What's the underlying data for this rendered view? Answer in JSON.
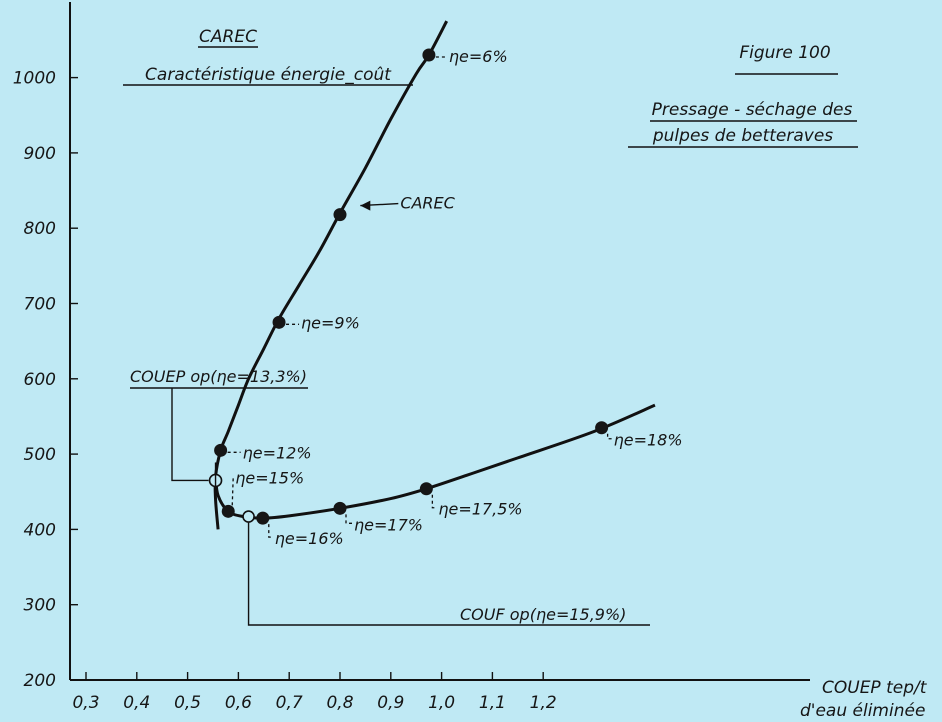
{
  "chart_data": {
    "type": "line",
    "title": "CAREC",
    "subtitle": "Caractéristique énergie_coût",
    "figure_label": "Figure 100",
    "description": [
      "Pressage - séchage des",
      "pulpes de betteraves"
    ],
    "xlabel": [
      "COUEP tep/t",
      "d'eau éliminée"
    ],
    "x_ticks": [
      "0,3",
      "0,4",
      "0,5",
      "0,6",
      "0,7",
      "0,8",
      "0,9",
      "1,0",
      "1,1",
      "1,2"
    ],
    "y_ticks": [
      "200",
      "300",
      "400",
      "500",
      "600",
      "700",
      "800",
      "900",
      "1000"
    ],
    "xlim": [
      0.3,
      1.3
    ],
    "ylim": [
      200,
      1070
    ],
    "grid": false,
    "series": [
      {
        "name": "CAREC",
        "x": [
          0.56,
          0.555,
          0.555,
          0.565,
          0.58,
          0.6,
          0.62,
          0.65,
          0.68,
          0.72,
          0.76,
          0.8,
          0.85,
          0.9,
          0.95,
          0.975,
          1.01
        ],
        "y": [
          400,
          440,
          470,
          505,
          530,
          565,
          600,
          640,
          680,
          725,
          770,
          820,
          880,
          945,
          1005,
          1030,
          1075
        ]
      },
      {
        "name": "",
        "x": [
          0.555,
          0.56,
          0.58,
          0.61,
          0.65,
          0.7,
          0.8,
          0.9,
          0.97,
          1.05,
          1.15,
          1.3,
          1.42
        ],
        "y": [
          470,
          445,
          424,
          417,
          415,
          418,
          428,
          441,
          454,
          472,
          495,
          530,
          565
        ]
      }
    ],
    "points": [
      {
        "x": 0.975,
        "y": 1030,
        "label": "ηe=6%",
        "dx": 18,
        "dy": 5
      },
      {
        "x": 0.8,
        "y": 818,
        "label": "",
        "dx": 0,
        "dy": 0
      },
      {
        "x": 0.68,
        "y": 675,
        "label": "ηe=9%",
        "dx": 20,
        "dy": 4
      },
      {
        "x": 0.565,
        "y": 505,
        "label": "ηe=12%",
        "dx": 20,
        "dy": 6
      },
      {
        "x": 0.58,
        "y": 424,
        "label": "ηe=15%",
        "dx": 5,
        "dy": -30
      },
      {
        "x": 0.648,
        "y": 415,
        "label": "ηe=16%",
        "dx": 10,
        "dy": 24
      },
      {
        "x": 0.8,
        "y": 428,
        "label": "ηe=17%",
        "dx": 12,
        "dy": 20
      },
      {
        "x": 0.97,
        "y": 454,
        "label": "ηe=17,5%",
        "dx": 10,
        "dy": 24
      },
      {
        "x": 1.315,
        "y": 535,
        "label": "ηe=18%",
        "dx": 10,
        "dy": 16
      }
    ],
    "curve_label": "CAREC",
    "annotations": [
      {
        "id": "couep",
        "label": "COUEP op(ηe=13,3%)",
        "x": 0.555,
        "y": 465
      },
      {
        "id": "couf",
        "label": "COUF op(ηe=15,9%)",
        "x": 0.62,
        "y": 417
      }
    ]
  }
}
